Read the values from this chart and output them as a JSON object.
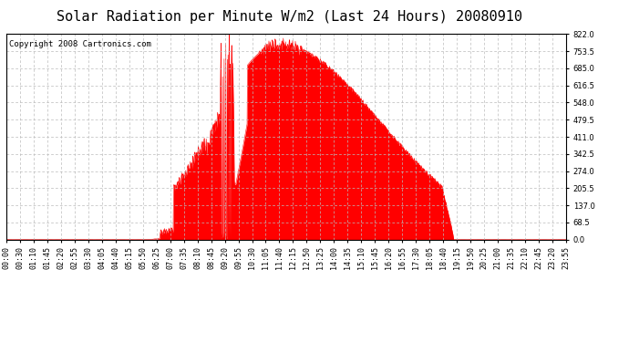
{
  "title": "Solar Radiation per Minute W/m2 (Last 24 Hours) 20080910",
  "copyright": "Copyright 2008 Cartronics.com",
  "background_color": "#ffffff",
  "plot_bg_color": "#ffffff",
  "fill_color": "#ff0000",
  "line_color": "#ff0000",
  "grid_color": "#bbbbbb",
  "y_ticks": [
    0.0,
    68.5,
    137.0,
    205.5,
    274.0,
    342.5,
    411.0,
    479.5,
    548.0,
    616.5,
    685.0,
    753.5,
    822.0
  ],
  "x_tick_labels": [
    "00:00",
    "00:30",
    "01:10",
    "01:45",
    "02:20",
    "02:55",
    "03:30",
    "04:05",
    "04:40",
    "05:15",
    "05:50",
    "06:25",
    "07:00",
    "07:35",
    "08:10",
    "08:45",
    "09:20",
    "09:55",
    "10:30",
    "11:05",
    "11:40",
    "12:15",
    "12:50",
    "13:25",
    "14:00",
    "14:35",
    "15:10",
    "15:45",
    "16:20",
    "16:55",
    "17:30",
    "18:05",
    "18:40",
    "19:15",
    "19:50",
    "20:25",
    "21:00",
    "21:35",
    "22:10",
    "22:45",
    "23:20",
    "23:55"
  ],
  "ylim": [
    0.0,
    822.0
  ],
  "title_fontsize": 11,
  "copyright_fontsize": 6.5,
  "tick_fontsize": 6
}
